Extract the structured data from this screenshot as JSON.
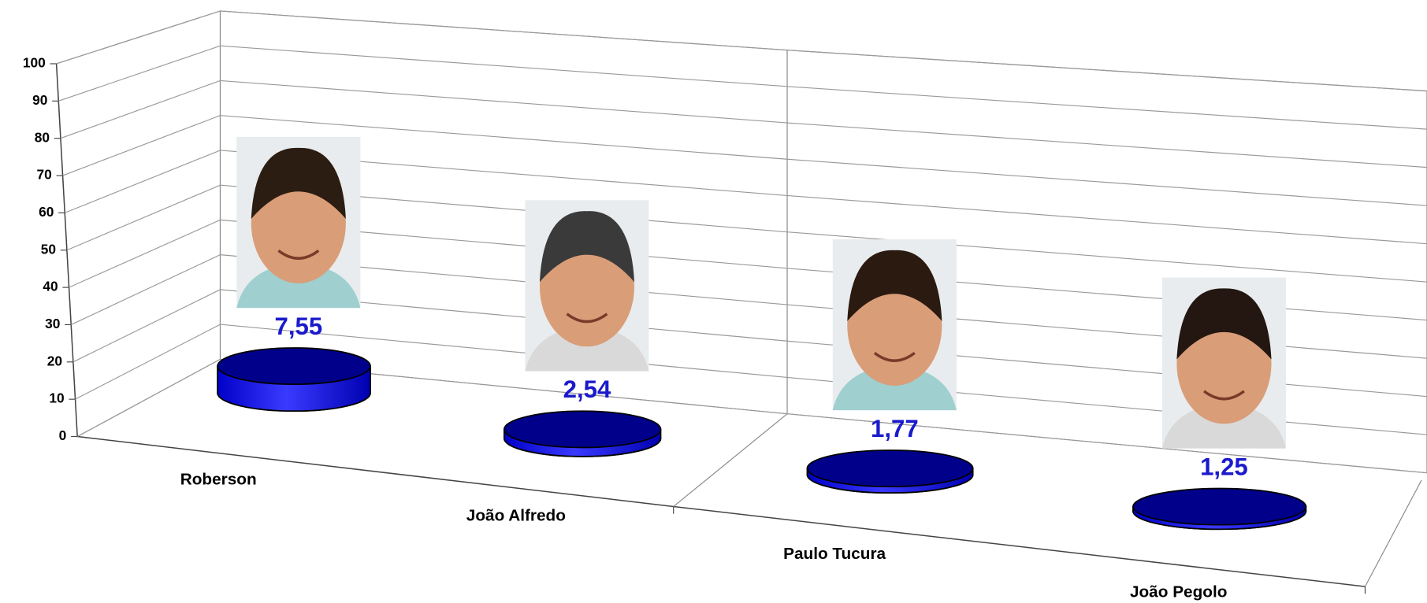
{
  "chart_data": {
    "type": "cylinder3d",
    "categories": [
      "Roberson",
      "João Alfredo",
      "Paulo Tucura",
      "João Pegolo"
    ],
    "values": [
      7.55,
      2.54,
      1.77,
      1.25
    ],
    "value_labels": [
      "7,55",
      "2,54",
      "1,77",
      "1,25"
    ],
    "color": "#0000ee",
    "ylim": [
      0,
      100
    ],
    "yticks": [
      0,
      10,
      20,
      30,
      40,
      50,
      60,
      70,
      80,
      90,
      100
    ],
    "grid": true
  }
}
